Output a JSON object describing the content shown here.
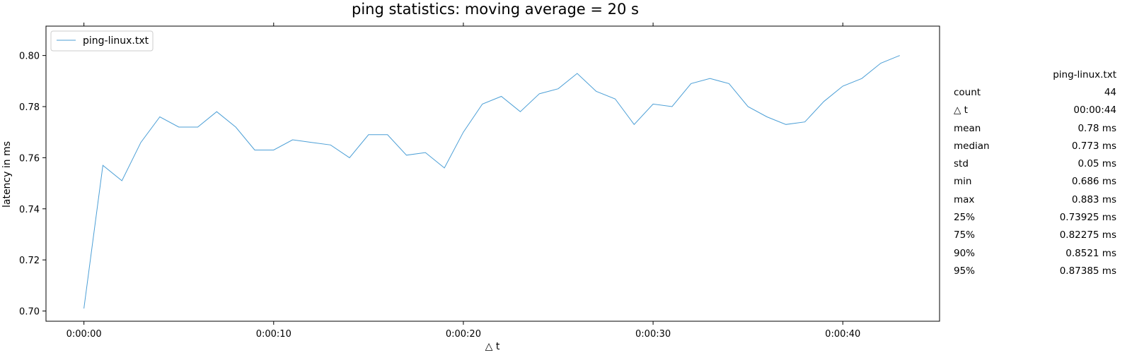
{
  "chart_data": {
    "type": "line",
    "title": "ping statistics: moving average = 20 s",
    "xlabel": "△ t",
    "ylabel": "latency in ms",
    "xlim": [
      -2.0,
      45.1
    ],
    "ylim": [
      0.696,
      0.8115
    ],
    "x_ticks": [
      {
        "value": 0,
        "label": "0:00:00"
      },
      {
        "value": 10,
        "label": "0:00:10"
      },
      {
        "value": 20,
        "label": "0:00:20"
      },
      {
        "value": 30,
        "label": "0:00:30"
      },
      {
        "value": 40,
        "label": "0:00:40"
      }
    ],
    "y_ticks": [
      {
        "value": 0.7,
        "label": "0.70"
      },
      {
        "value": 0.72,
        "label": "0.72"
      },
      {
        "value": 0.74,
        "label": "0.74"
      },
      {
        "value": 0.76,
        "label": "0.76"
      },
      {
        "value": 0.78,
        "label": "0.78"
      },
      {
        "value": 0.8,
        "label": "0.80"
      }
    ],
    "grid": false,
    "legend": "upper-left",
    "series": [
      {
        "name": "ping-linux.txt",
        "color": "#4c9fd6",
        "x": [
          0,
          1,
          2,
          3,
          4,
          5,
          6,
          7,
          8,
          9,
          10,
          11,
          12,
          13,
          14,
          15,
          16,
          17,
          18,
          19,
          20,
          21,
          22,
          23,
          24,
          25,
          26,
          27,
          28,
          29,
          30,
          31,
          32,
          33,
          34,
          35,
          36,
          37,
          38,
          39,
          40,
          41,
          42,
          43
        ],
        "y": [
          0.701,
          0.757,
          0.751,
          0.766,
          0.776,
          0.772,
          0.772,
          0.778,
          0.772,
          0.763,
          0.763,
          0.767,
          0.766,
          0.765,
          0.76,
          0.769,
          0.769,
          0.761,
          0.762,
          0.756,
          0.77,
          0.781,
          0.784,
          0.778,
          0.785,
          0.787,
          0.793,
          0.786,
          0.783,
          0.773,
          0.781,
          0.78,
          0.789,
          0.791,
          0.789,
          0.78,
          0.776,
          0.773,
          0.774,
          0.782,
          0.788,
          0.791,
          0.797,
          0.8
        ]
      }
    ]
  },
  "stats_table": {
    "header": "ping-linux.txt",
    "rows": [
      {
        "label": "count",
        "value": "44"
      },
      {
        "label": "△ t",
        "value": "00:00:44"
      },
      {
        "label": "mean",
        "value": "0.78 ms"
      },
      {
        "label": "median",
        "value": "0.773 ms"
      },
      {
        "label": "std",
        "value": "0.05 ms"
      },
      {
        "label": "min",
        "value": "0.686 ms"
      },
      {
        "label": "max",
        "value": "0.883 ms"
      },
      {
        "label": "25%",
        "value": "0.73925 ms"
      },
      {
        "label": "75%",
        "value": "0.82275 ms"
      },
      {
        "label": "90%",
        "value": "0.8521 ms"
      },
      {
        "label": "95%",
        "value": "0.87385 ms"
      }
    ]
  }
}
